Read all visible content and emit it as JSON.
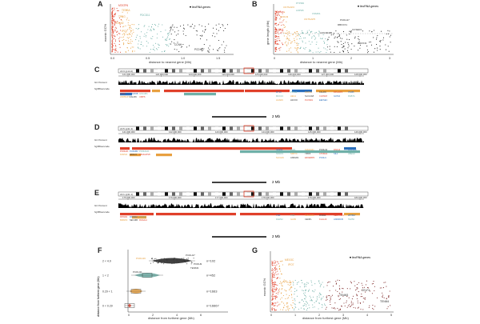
{
  "panels": {
    "A": {
      "label": "A",
      "legend": "lincRNA genes",
      "xlabel": "distance to nearest gene (Mb)",
      "ylabel": "exonic GC%",
      "xticks": [
        "0.0",
        "0.5",
        "1.0",
        "1.5"
      ],
      "genes": [
        "MTATP6",
        "TESSA",
        "PDCD11",
        "TPBG",
        "C9orf2",
        "IPO7",
        "CCNH",
        "PCDH17"
      ]
    },
    "B": {
      "label": "B",
      "legend": "lincRNA genes",
      "xlabel": "distance to nearest gene (Mb)",
      "ylabel": "gene length (Mb)",
      "xticks": [
        "0",
        "1",
        "2",
        "3"
      ],
      "genes": [
        "PTPRD",
        "CNTNAP2",
        "DMD",
        "LRP1B",
        "CSMD1",
        "PCDH9",
        "CNTNAP5",
        "PCDH17",
        "RBFOX1",
        "CCSER1",
        "LINC00486",
        "NRXN3"
      ]
    },
    "C": {
      "label": "C",
      "chrom": "chr3 (p14.2)",
      "coords": [
        "121,000,000",
        "122,000,000",
        "123,000,000",
        "124,000,000",
        "125,000,000",
        "126,000,000",
        "127,000,000",
        "128,000,000"
      ],
      "track1": "GC Percent",
      "track2": "hg38Gencode",
      "scale": "2 Mb",
      "genes": [
        "CSTA",
        "SEMA5B",
        "GOLGB1",
        "HSPBAP1",
        "KALRN",
        "UMPS",
        "MYLK",
        "PTPLB",
        "ROPN1",
        "KALRN",
        "RPL32P3",
        "ITGB5",
        "MUC13",
        "HEG1",
        "SLC12A8",
        "CLDN18",
        "GATA2",
        "RAB7A",
        "ACAD9",
        "H1FOO",
        "PLXND1",
        "EEFSEC"
      ]
    },
    "D": {
      "label": "D",
      "chrom": "chr5 (q31.3)",
      "coords": [
        "141,000,000",
        "142,000,000",
        "143,000,000",
        "144,000,000",
        "145,000,000",
        "146,000,000"
      ],
      "track1": "GC Percent",
      "track2": "hg38Gencode",
      "scale": "2 Mb",
      "genes": [
        "PCDHA1",
        "PCDHB2",
        "PCDHGA1",
        "DIAPH1",
        "HDAC3",
        "ARHGAP26",
        "NR3C1",
        "FGF1",
        "KIAA0141",
        "PCDH12",
        "RNF14",
        "GNPDA1",
        "NDFIP1",
        "SPRY4",
        "YIPF5",
        "CTNNA1",
        "SIL1",
        "HBEGF",
        "SLC4A9",
        "ANKHD1",
        "EIF4EBP3",
        "PCDH1"
      ]
    },
    "E": {
      "label": "E",
      "chrom": "chr1 (q31.1)",
      "coords": [
        "175,000,000",
        "176,000,000",
        "177,000,000",
        "178,000,000",
        "179,000,000",
        "180,000,000"
      ],
      "track1": "GC Percent",
      "track2": "hg38Gencode",
      "scale": "2 Mb",
      "genes": [
        "RFWD2",
        "PAPPA2",
        "ASTN1",
        "BRINP2",
        "SEC16B",
        "RASAL2",
        "TNR",
        "TNN",
        "KIAA0040",
        "RC3H1",
        "SERPINC1",
        "ZBTB37",
        "DARS2",
        "GAS5",
        "CENPL",
        "KLHL20",
        "ANKRD45",
        "TEX50"
      ]
    },
    "F": {
      "label": "F",
      "xlabel": "distance from furthest gene (Mb)",
      "ylabel": "distance from furthest gene (Mb)",
      "xticks": [
        "0",
        "2",
        "4",
        "6"
      ],
      "categories": [
        "2 < 4.9",
        "1 < 2",
        "0.29 < 1",
        "0 < 0.29"
      ],
      "counts": [
        "n=102",
        "n=452",
        "n=1663",
        "n=16667"
      ],
      "genes": [
        "PCDH19",
        "PCDH11",
        "TENM3",
        "PCDH9",
        "PCDH17"
      ]
    },
    "G": {
      "label": "G",
      "legend": "lincRNA genes",
      "xlabel": "distance from furthest gene (Mb)",
      "ylabel": "exonic GC%",
      "xticks": [
        "0",
        "1",
        "2",
        "3",
        "4",
        "5"
      ],
      "genes": [
        "CELF4",
        "TENM4",
        "TENM3",
        "MEX3C",
        "IPO7"
      ]
    }
  },
  "colors": {
    "orange": "#e8a040",
    "red": "#e0402a",
    "teal": "#6fb0a8",
    "dark": "#222222",
    "black": "#000000"
  }
}
